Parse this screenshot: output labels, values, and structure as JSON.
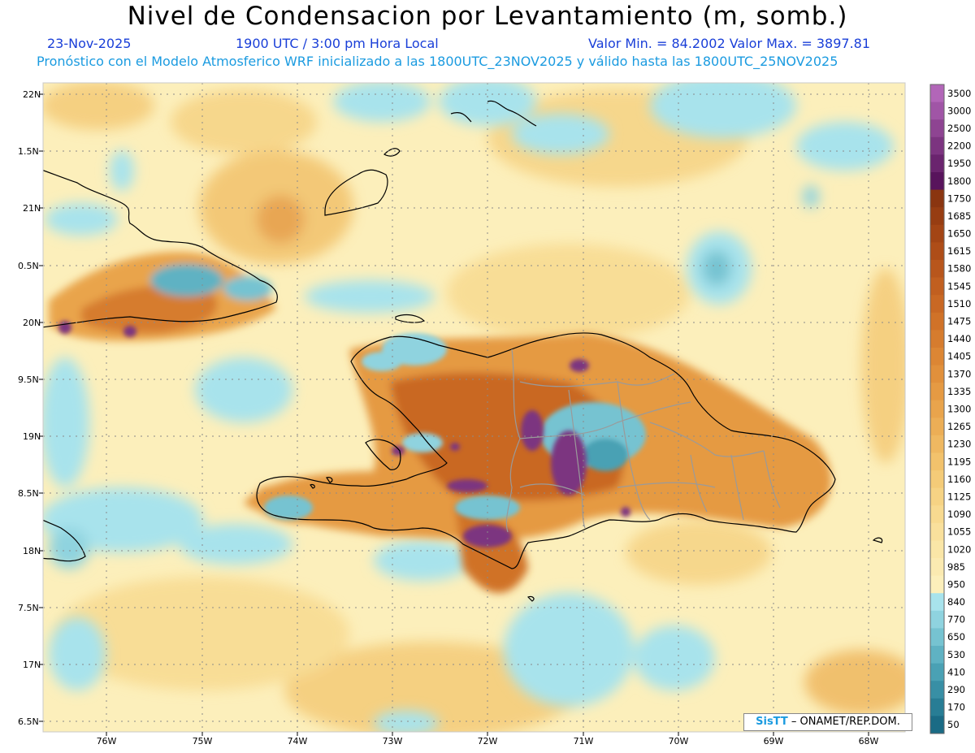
{
  "header": {
    "title": "Nivel de Condensacion por Levantamiento (m, somb.)",
    "date": "23-Nov-2025",
    "time": "1900 UTC / 3:00 pm Hora Local",
    "min_max": "Valor Min. = 84.2002  Valor Max. = 3897.81",
    "forecast_info": "Pronóstico con el Modelo Atmosferico WRF inicializado a las 1800UTC_23NOV2025 y válido hasta las  1800UTC_25NOV2025"
  },
  "axes": {
    "lat_labels": [
      "22N",
      "1.5N",
      "21N",
      "0.5N",
      "20N",
      "9.5N",
      "19N",
      "8.5N",
      "18N",
      "7.5N",
      "17N",
      "6.5N"
    ],
    "lon_labels": [
      "76W",
      "75W",
      "74W",
      "73W",
      "72W",
      "71W",
      "70W",
      "69W",
      "68W"
    ]
  },
  "colorbar": {
    "levels": [
      "3500",
      "3000",
      "2500",
      "2200",
      "1950",
      "1800",
      "1750",
      "1685",
      "1650",
      "1615",
      "1580",
      "1545",
      "1510",
      "1475",
      "1440",
      "1405",
      "1370",
      "1335",
      "1300",
      "1265",
      "1230",
      "1195",
      "1160",
      "1125",
      "1090",
      "1055",
      "1020",
      "985",
      "950",
      "840",
      "770",
      "650",
      "530",
      "410",
      "290",
      "170",
      "50"
    ],
    "colors": [
      "#b266b8",
      "#a055a6",
      "#8e4492",
      "#7c3480",
      "#6a246e",
      "#58145c",
      "#8a3510",
      "#973d12",
      "#a34515",
      "#ae4d18",
      "#b8561c",
      "#c15f20",
      "#c96824",
      "#d07228",
      "#d67c2e",
      "#dc8634",
      "#e1903b",
      "#e59a43",
      "#e9a44c",
      "#ecae56",
      "#efb861",
      "#f2c26c",
      "#f4cb78",
      "#f6d384",
      "#f8da90",
      "#f9e09c",
      "#fae6a7",
      "#fbeab1",
      "#fcefbb",
      "#a8e3ec",
      "#8fd3df",
      "#76c3d1",
      "#5fb2c3",
      "#4aa1b4",
      "#388fa5",
      "#287d95",
      "#1a6b85"
    ]
  },
  "credit": {
    "logo": "SisTT",
    "text": " – ONAMET/REP.DOM."
  }
}
